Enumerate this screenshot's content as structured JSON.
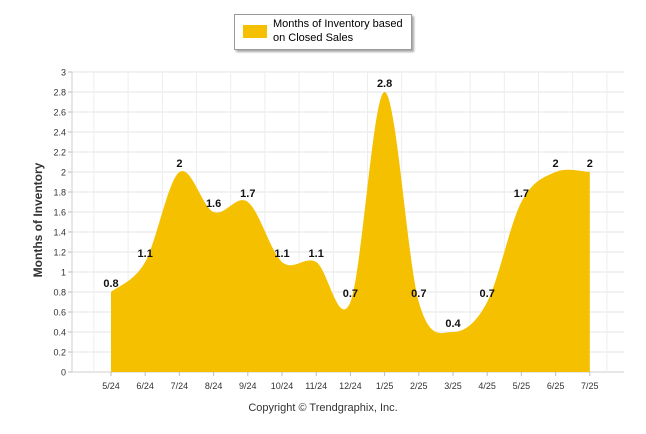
{
  "chart_data": {
    "type": "area",
    "categories": [
      "5/24",
      "6/24",
      "7/24",
      "8/24",
      "9/24",
      "10/24",
      "11/24",
      "12/24",
      "1/25",
      "2/25",
      "3/25",
      "4/25",
      "5/25",
      "6/25",
      "7/25"
    ],
    "series": [
      {
        "name": "Months of Inventory based on Closed Sales",
        "values": [
          0.8,
          1.1,
          2,
          1.6,
          1.7,
          1.1,
          1.1,
          0.7,
          2.8,
          0.7,
          0.4,
          0.7,
          1.7,
          2,
          2
        ],
        "color": "#f5c000"
      }
    ],
    "value_labels": [
      "0.8",
      "1.1",
      "2",
      "1.6",
      "1.7",
      "1.1",
      "1.1",
      "0.7",
      "2.8",
      "0.7",
      "0.4",
      "0.7",
      "1.7",
      "2",
      "2"
    ],
    "yticks": [
      "0",
      "0.2",
      "0.4",
      "0.6",
      "0.8",
      "1",
      "1.2",
      "1.4",
      "1.6",
      "1.8",
      "2",
      "2.2",
      "2.4",
      "2.6",
      "2.8",
      "3"
    ],
    "ylim": [
      0,
      3
    ],
    "ylabel": "Months of Inventory",
    "xlabel": "",
    "grid": true,
    "legend_position": "top-center"
  },
  "legend": {
    "label": "Months of Inventory based on Closed Sales"
  },
  "footer": {
    "copyright": "Copyright © Trendgraphix, Inc."
  }
}
